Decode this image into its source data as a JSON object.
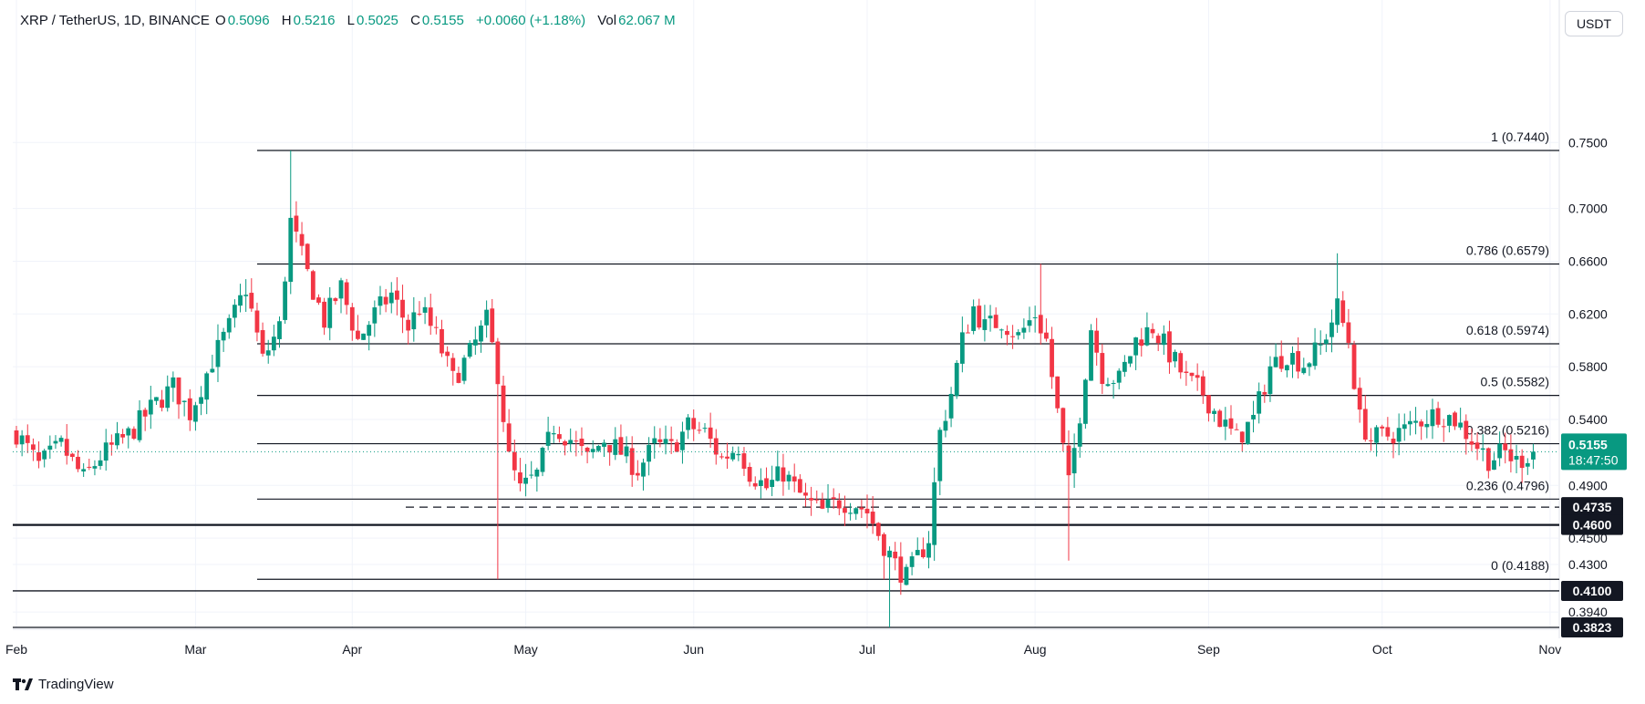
{
  "header": {
    "symbol": "XRP / TetherUS, 1D, BINANCE",
    "o_label": "O",
    "o_value": "0.5096",
    "h_label": "H",
    "h_value": "0.5216",
    "l_label": "L",
    "l_value": "0.5025",
    "c_label": "C",
    "c_value": "0.5155",
    "change": "+0.0060 (+1.18%)",
    "vol_label": "Vol",
    "vol_value": "62.067 M"
  },
  "currency_button": "USDT",
  "branding": "TradingView",
  "colors": {
    "up": "#089981",
    "down": "#f23645",
    "grid": "#f0f3fa",
    "line": "#131722"
  },
  "chart_data": {
    "type": "candlestick",
    "title": "XRP / TetherUS, 1D, BINANCE",
    "ylim": [
      0.3823,
      0.76
    ],
    "y_ticks": [
      "0.7500",
      "0.7000",
      "0.6600",
      "0.6200",
      "0.5800",
      "0.5400",
      "0.4900",
      "0.4500",
      "0.4300",
      "0.3940"
    ],
    "x_ticks": [
      "Feb",
      "Mar",
      "Apr",
      "May",
      "Jun",
      "Jul",
      "Aug",
      "Sep",
      "Oct",
      "Nov"
    ],
    "last_price": {
      "value": "0.5155",
      "countdown": "18:47:50"
    },
    "fib_levels": [
      {
        "label": "1 (0.7440)",
        "value": 0.744
      },
      {
        "label": "0.786 (0.6579)",
        "value": 0.6579
      },
      {
        "label": "0.618 (0.5974)",
        "value": 0.5974
      },
      {
        "label": "0.5 (0.5582)",
        "value": 0.5582
      },
      {
        "label": "0.382 (0.5216)",
        "value": 0.5216
      },
      {
        "label": "0.236 (0.4796)",
        "value": 0.4796
      },
      {
        "label": "0 (0.4188)",
        "value": 0.4188
      }
    ],
    "horizontal_levels": [
      {
        "label": "0.4735",
        "value": 0.4735,
        "style": "dashed"
      },
      {
        "label": "0.4600",
        "value": 0.46,
        "style": "solid-bold"
      },
      {
        "label": "0.4100",
        "value": 0.41,
        "style": "solid"
      },
      {
        "label": "0.3823",
        "value": 0.3823,
        "style": "solid"
      }
    ],
    "close_path": [
      [
        0,
        0.53
      ],
      [
        4,
        0.505
      ],
      [
        8,
        0.52
      ],
      [
        12,
        0.495
      ],
      [
        15,
        0.512
      ],
      [
        20,
        0.528
      ],
      [
        24,
        0.548
      ],
      [
        28,
        0.565
      ],
      [
        31,
        0.545
      ],
      [
        35,
        0.585
      ],
      [
        38,
        0.61
      ],
      [
        41,
        0.64
      ],
      [
        44,
        0.585
      ],
      [
        47,
        0.61
      ],
      [
        49,
        0.69
      ],
      [
        52,
        0.65
      ],
      [
        55,
        0.615
      ],
      [
        58,
        0.64
      ],
      [
        61,
        0.6
      ],
      [
        64,
        0.62
      ],
      [
        67,
        0.635
      ],
      [
        70,
        0.61
      ],
      [
        72,
        0.625
      ],
      [
        75,
        0.603
      ],
      [
        78,
        0.57
      ],
      [
        81,
        0.59
      ],
      [
        84,
        0.615
      ],
      [
        86,
        0.575
      ],
      [
        88,
        0.51
      ],
      [
        90,
        0.486
      ],
      [
        93,
        0.498
      ],
      [
        96,
        0.535
      ],
      [
        99,
        0.525
      ],
      [
        102,
        0.51
      ],
      [
        105,
        0.525
      ],
      [
        108,
        0.515
      ],
      [
        111,
        0.502
      ],
      [
        114,
        0.52
      ],
      [
        117,
        0.518
      ],
      [
        120,
        0.535
      ],
      [
        123,
        0.53
      ],
      [
        126,
        0.51
      ],
      [
        129,
        0.52
      ],
      [
        131,
        0.5
      ],
      [
        134,
        0.488
      ],
      [
        137,
        0.5
      ],
      [
        139,
        0.488
      ],
      [
        141,
        0.478
      ],
      [
        144,
        0.47
      ],
      [
        147,
        0.478
      ],
      [
        150,
        0.476
      ],
      [
        152,
        0.47
      ],
      [
        155,
        0.445
      ],
      [
        157,
        0.43
      ],
      [
        159,
        0.42
      ],
      [
        161,
        0.435
      ],
      [
        163,
        0.45
      ],
      [
        165,
        0.53
      ],
      [
        167,
        0.56
      ],
      [
        169,
        0.6
      ],
      [
        171,
        0.625
      ],
      [
        173,
        0.61
      ],
      [
        176,
        0.615
      ],
      [
        179,
        0.603
      ],
      [
        182,
        0.62
      ],
      [
        184,
        0.6
      ],
      [
        186,
        0.545
      ],
      [
        188,
        0.49
      ],
      [
        190,
        0.545
      ],
      [
        192,
        0.61
      ],
      [
        194,
        0.575
      ],
      [
        197,
        0.57
      ],
      [
        200,
        0.6
      ],
      [
        203,
        0.61
      ],
      [
        206,
        0.59
      ],
      [
        209,
        0.57
      ],
      [
        212,
        0.56
      ],
      [
        215,
        0.54
      ],
      [
        218,
        0.525
      ],
      [
        221,
        0.54
      ],
      [
        224,
        0.58
      ],
      [
        227,
        0.59
      ],
      [
        230,
        0.582
      ],
      [
        233,
        0.595
      ],
      [
        236,
        0.625
      ],
      [
        238,
        0.6
      ],
      [
        240,
        0.54
      ],
      [
        242,
        0.525
      ],
      [
        245,
        0.528
      ],
      [
        248,
        0.532
      ],
      [
        251,
        0.54
      ],
      [
        254,
        0.545
      ],
      [
        257,
        0.54
      ],
      [
        260,
        0.525
      ],
      [
        263,
        0.51
      ],
      [
        266,
        0.515
      ],
      [
        268,
        0.508
      ],
      [
        271,
        0.5155
      ]
    ],
    "extremes": [
      {
        "day": 49,
        "high": 0.744
      },
      {
        "day": 155,
        "low": 0.4188
      },
      {
        "day": 156,
        "low": 0.3823
      },
      {
        "day": 86,
        "low": 0.4188
      },
      {
        "day": 236,
        "high": 0.666
      },
      {
        "day": 183,
        "high": 0.658
      },
      {
        "day": 188,
        "low": 0.433
      }
    ]
  }
}
